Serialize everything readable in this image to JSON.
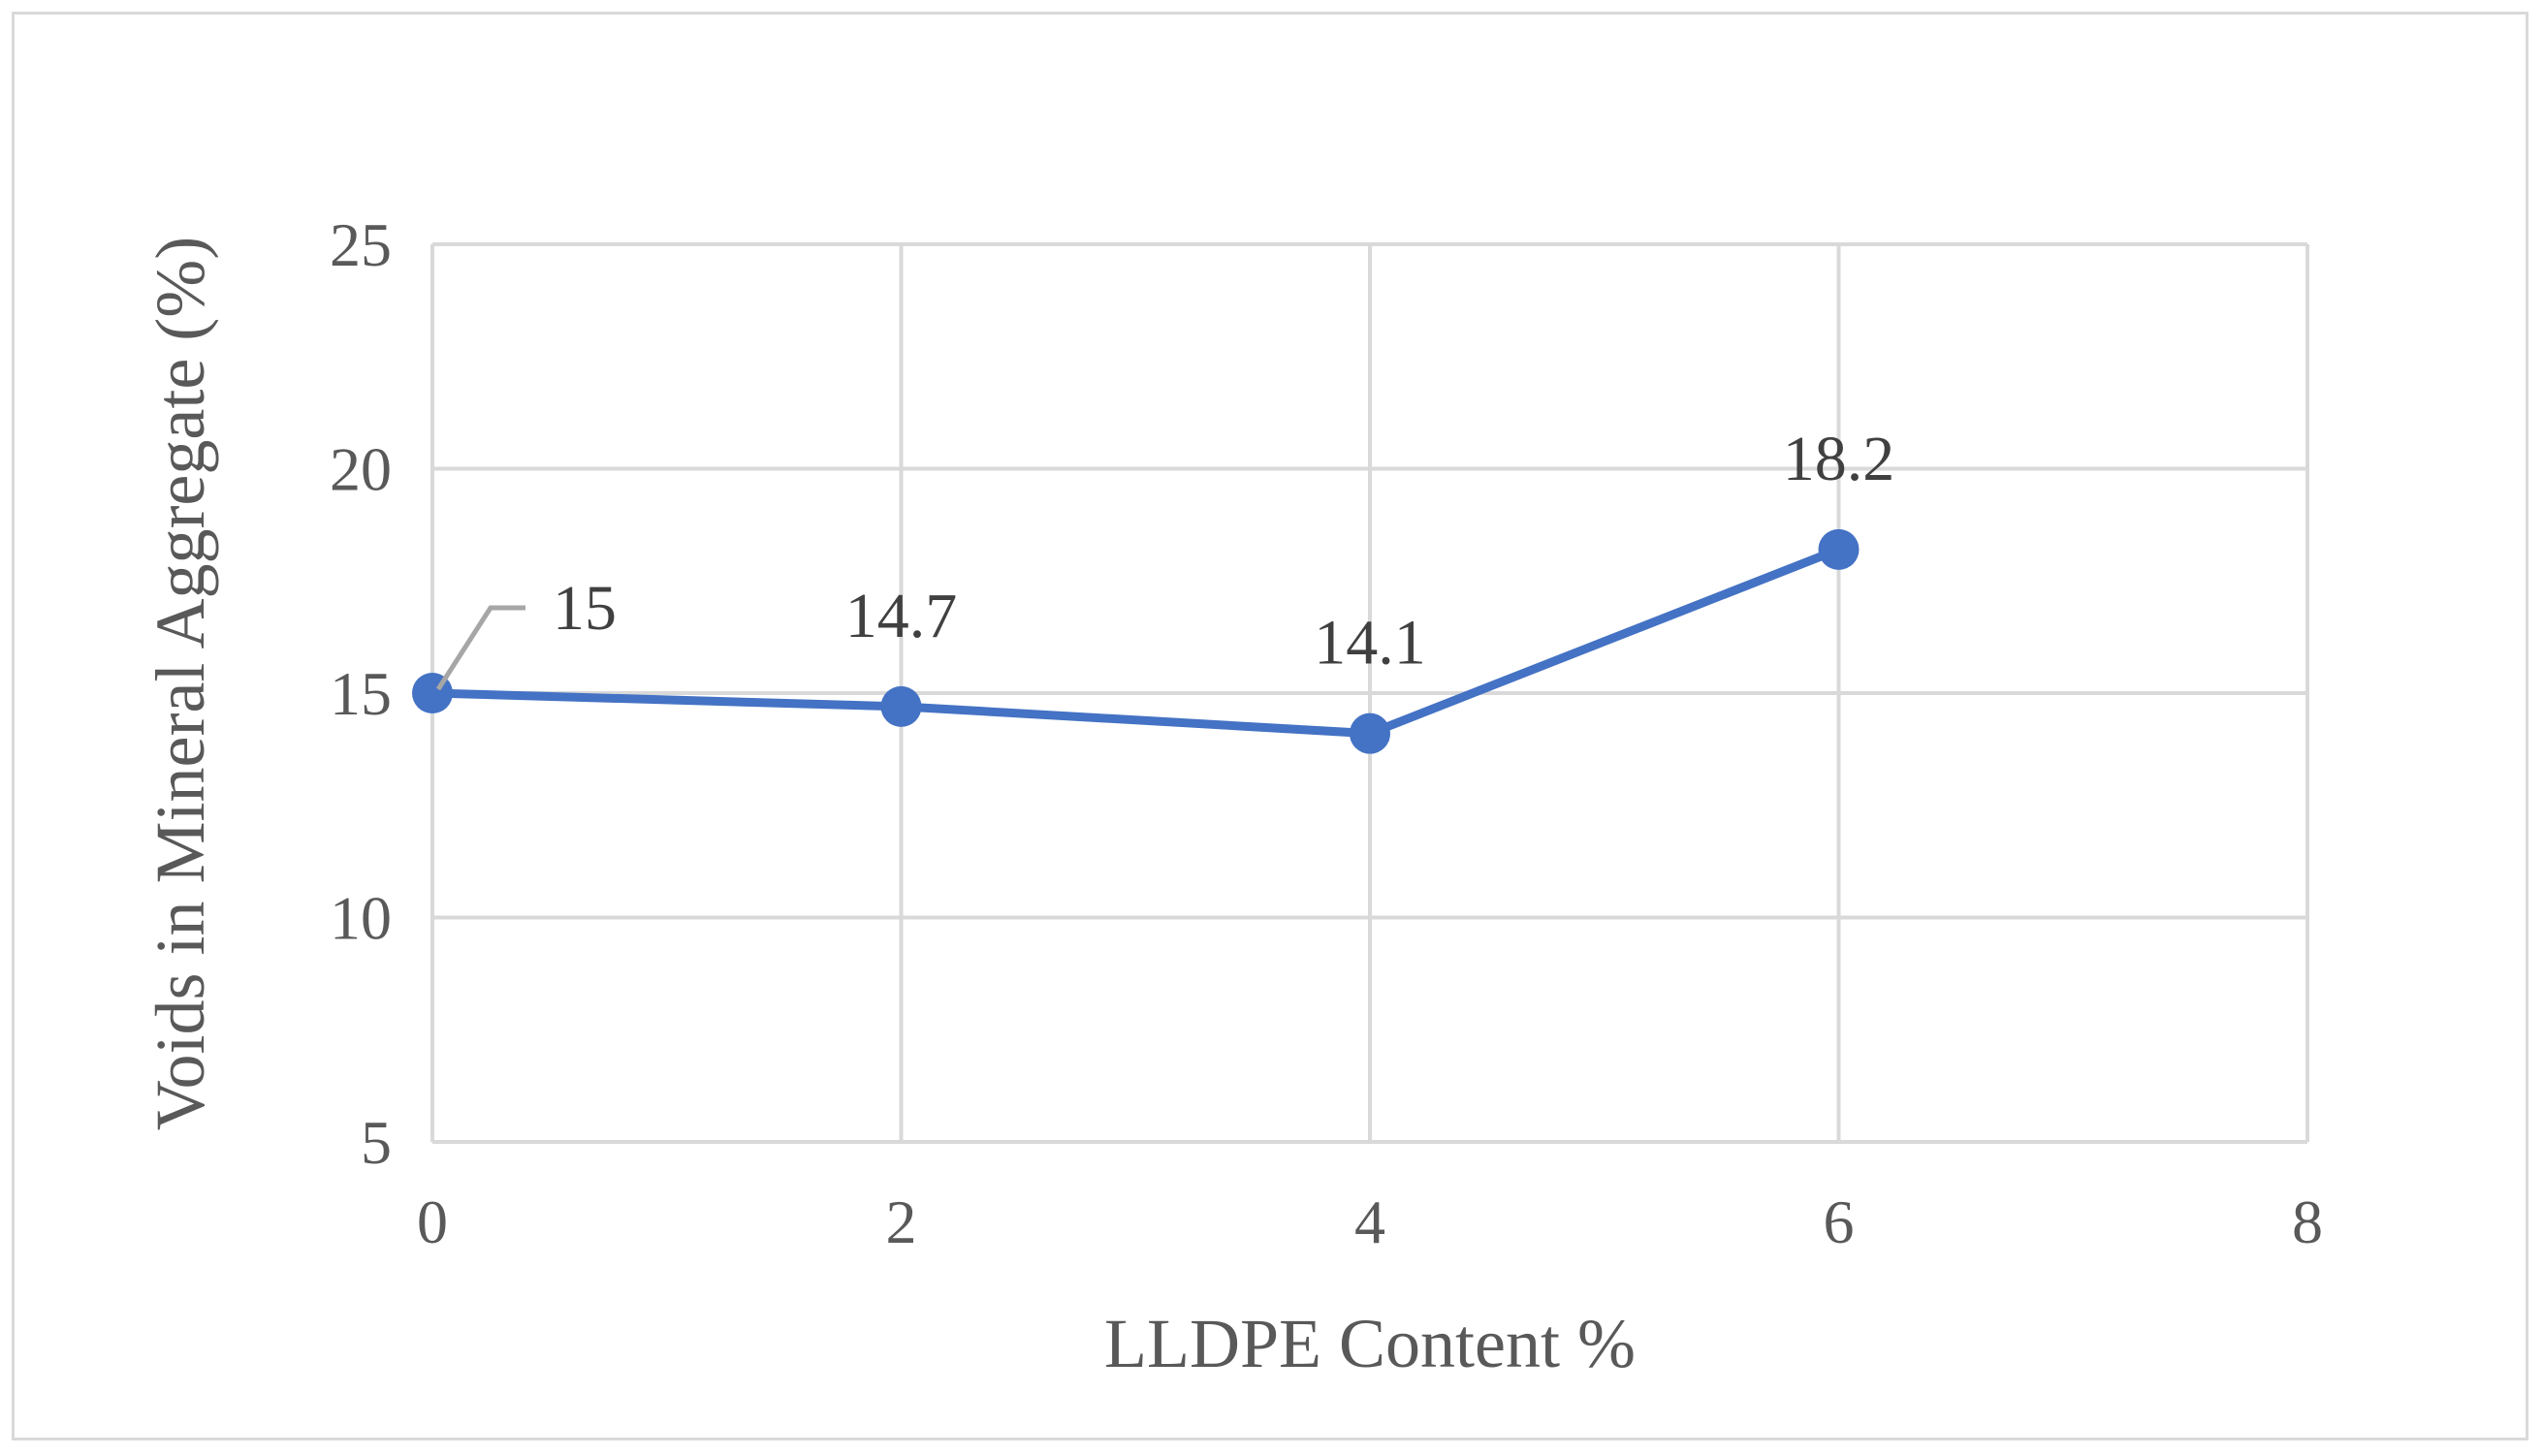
{
  "chart_data": {
    "type": "line",
    "title": "",
    "xlabel": "LLDPE Content %",
    "ylabel": "Voids in Mineral Aggregate (%)",
    "xlim": [
      0,
      8
    ],
    "ylim": [
      5,
      25
    ],
    "xticks": [
      0,
      2,
      4,
      6,
      8
    ],
    "yticks": [
      5,
      10,
      15,
      20,
      25
    ],
    "grid": true,
    "legend": "none",
    "series": [
      {
        "color": "#4472c4",
        "x": [
          0,
          2,
          4,
          6
        ],
        "y": [
          15,
          14.7,
          14.1,
          18.2
        ],
        "labels": [
          "15",
          "14.7",
          "14.1",
          "18.2"
        ]
      }
    ],
    "colors": {
      "line": "#4472c4",
      "grid": "#d9d9d9",
      "text": "#595959",
      "leader": "#a6a6a6"
    }
  }
}
